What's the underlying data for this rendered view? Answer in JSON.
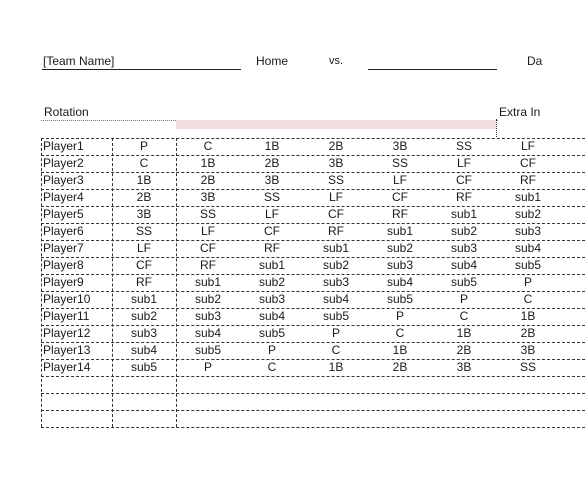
{
  "header": {
    "team_name": "[Team Name]",
    "home": "Home",
    "vs": "vs.",
    "date": "Da"
  },
  "rotation_label": "Rotation",
  "extra_innings_label": "Extra In",
  "rows": [
    {
      "player": "Player1",
      "cells": [
        "P",
        "C",
        "1B",
        "2B",
        "3B",
        "SS",
        "LF"
      ]
    },
    {
      "player": "Player2",
      "cells": [
        "C",
        "1B",
        "2B",
        "3B",
        "SS",
        "LF",
        "CF"
      ]
    },
    {
      "player": "Player3",
      "cells": [
        "1B",
        "2B",
        "3B",
        "SS",
        "LF",
        "CF",
        "RF"
      ]
    },
    {
      "player": "Player4",
      "cells": [
        "2B",
        "3B",
        "SS",
        "LF",
        "CF",
        "RF",
        "sub1"
      ]
    },
    {
      "player": "Player5",
      "cells": [
        "3B",
        "SS",
        "LF",
        "CF",
        "RF",
        "sub1",
        "sub2"
      ]
    },
    {
      "player": "Player6",
      "cells": [
        "SS",
        "LF",
        "CF",
        "RF",
        "sub1",
        "sub2",
        "sub3"
      ]
    },
    {
      "player": "Player7",
      "cells": [
        "LF",
        "CF",
        "RF",
        "sub1",
        "sub2",
        "sub3",
        "sub4"
      ]
    },
    {
      "player": "Player8",
      "cells": [
        "CF",
        "RF",
        "sub1",
        "sub2",
        "sub3",
        "sub4",
        "sub5"
      ]
    },
    {
      "player": "Player9",
      "cells": [
        "RF",
        "sub1",
        "sub2",
        "sub3",
        "sub4",
        "sub5",
        "P"
      ]
    },
    {
      "player": "Player10",
      "cells": [
        "sub1",
        "sub2",
        "sub3",
        "sub4",
        "sub5",
        "P",
        "C"
      ]
    },
    {
      "player": "Player11",
      "cells": [
        "sub2",
        "sub3",
        "sub4",
        "sub5",
        "P",
        "C",
        "1B"
      ]
    },
    {
      "player": "Player12",
      "cells": [
        "sub3",
        "sub4",
        "sub5",
        "P",
        "C",
        "1B",
        "2B"
      ]
    },
    {
      "player": "Player13",
      "cells": [
        "sub4",
        "sub5",
        "P",
        "C",
        "1B",
        "2B",
        "3B"
      ]
    },
    {
      "player": "Player14",
      "cells": [
        "sub5",
        "P",
        "C",
        "1B",
        "2B",
        "3B",
        "SS"
      ]
    }
  ],
  "empty_rows": 3,
  "colors": {
    "header_band": "#f2dde0",
    "grid_line": "#333333"
  }
}
